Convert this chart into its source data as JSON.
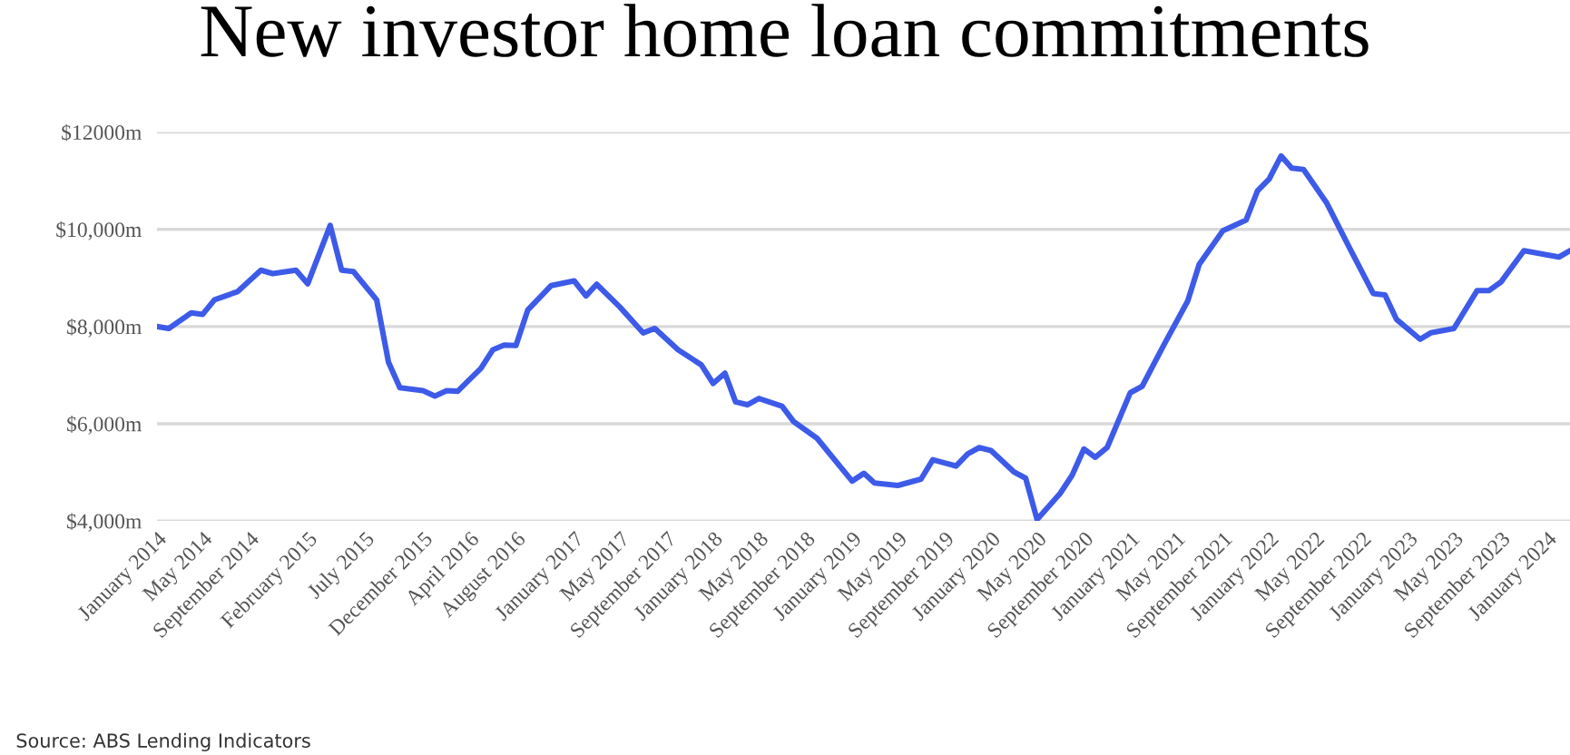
{
  "chart_data": {
    "type": "line",
    "title": "New investor home loan commitments",
    "annotations": [
      "Source: ABS Lending Indicators"
    ],
    "x": [
      "2014-01",
      "2014-02",
      "2014-04",
      "2014-05",
      "2014-06",
      "2014-08",
      "2014-10",
      "2014-11",
      "2015-01",
      "2015-02",
      "2015-04",
      "2015-05",
      "2015-06",
      "2015-08",
      "2015-09",
      "2015-10",
      "2015-12",
      "2016-01",
      "2016-02",
      "2016-03",
      "2016-05",
      "2016-06",
      "2016-07",
      "2016-08",
      "2016-09",
      "2016-11",
      "2017-01",
      "2017-02",
      "2017-03",
      "2017-05",
      "2017-07",
      "2017-08",
      "2017-10",
      "2017-12",
      "2018-01",
      "2018-02",
      "2018-03",
      "2018-04",
      "2018-05",
      "2018-07",
      "2018-08",
      "2018-10",
      "2019-01",
      "2019-02",
      "2019-03",
      "2019-05",
      "2019-07",
      "2019-08",
      "2019-10",
      "2019-11",
      "2019-12",
      "2020-01",
      "2020-03",
      "2020-04",
      "2020-05",
      "2020-07",
      "2020-08",
      "2020-09",
      "2020-10",
      "2020-11",
      "2021-01",
      "2021-02",
      "2021-04",
      "2021-06",
      "2021-07",
      "2021-09",
      "2021-11",
      "2021-12",
      "2022-01",
      "2022-02",
      "2022-03",
      "2022-04",
      "2022-06",
      "2022-08",
      "2022-10",
      "2022-11",
      "2022-12",
      "2023-02",
      "2023-03",
      "2023-05",
      "2023-07",
      "2023-08",
      "2023-09",
      "2023-11",
      "2024-02",
      "2024-03"
    ],
    "series": [
      {
        "color": "#3d5be8",
        "values": [
          8000,
          7960,
          8280,
          8250,
          8550,
          8720,
          9160,
          9090,
          9160,
          8880,
          10080,
          9160,
          9130,
          8550,
          7270,
          6740,
          6680,
          6570,
          6680,
          6670,
          7140,
          7520,
          7620,
          7610,
          8340,
          8840,
          8940,
          8630,
          8870,
          8400,
          7870,
          7960,
          7520,
          7210,
          6830,
          7040,
          6450,
          6390,
          6520,
          6360,
          6040,
          5700,
          4820,
          4980,
          4780,
          4730,
          4860,
          5260,
          5130,
          5380,
          5510,
          5450,
          5010,
          4880,
          4030,
          4570,
          4940,
          5480,
          5310,
          5510,
          6640,
          6770,
          7650,
          8530,
          9280,
          9970,
          10190,
          10790,
          11040,
          11510,
          11260,
          11230,
          10540,
          9600,
          8680,
          8650,
          8150,
          7740,
          7870,
          7960,
          8740,
          8740,
          8910,
          9560,
          9430,
          9560
        ]
      }
    ],
    "xlim": [
      "2014-01",
      "2024-03"
    ],
    "xticks": [
      {
        "value": "2014-01",
        "label": "January 2014"
      },
      {
        "value": "2014-05",
        "label": "May 2014"
      },
      {
        "value": "2014-09",
        "label": "September 2014"
      },
      {
        "value": "2015-02",
        "label": "February 2015"
      },
      {
        "value": "2015-07",
        "label": "July 2015"
      },
      {
        "value": "2015-12",
        "label": "December 2015"
      },
      {
        "value": "2016-04",
        "label": "April 2016"
      },
      {
        "value": "2016-08",
        "label": "August 2016"
      },
      {
        "value": "2017-01",
        "label": "January 2017"
      },
      {
        "value": "2017-05",
        "label": "May 2017"
      },
      {
        "value": "2017-09",
        "label": "September 2017"
      },
      {
        "value": "2018-01",
        "label": "January 2018"
      },
      {
        "value": "2018-05",
        "label": "May 2018"
      },
      {
        "value": "2018-09",
        "label": "September 2018"
      },
      {
        "value": "2019-01",
        "label": "January 2019"
      },
      {
        "value": "2019-05",
        "label": "May 2019"
      },
      {
        "value": "2019-09",
        "label": "September 2019"
      },
      {
        "value": "2020-01",
        "label": "January 2020"
      },
      {
        "value": "2020-05",
        "label": "May 2020"
      },
      {
        "value": "2020-09",
        "label": "September 2020"
      },
      {
        "value": "2021-01",
        "label": "January 2021"
      },
      {
        "value": "2021-05",
        "label": "May 2021"
      },
      {
        "value": "2021-09",
        "label": "September 2021"
      },
      {
        "value": "2022-01",
        "label": "January 2022"
      },
      {
        "value": "2022-05",
        "label": "May 2022"
      },
      {
        "value": "2022-09",
        "label": "September 2022"
      },
      {
        "value": "2023-01",
        "label": "January 2023"
      },
      {
        "value": "2023-05",
        "label": "May 2023"
      },
      {
        "value": "2023-09",
        "label": "September 2023"
      },
      {
        "value": "2024-01",
        "label": "January 2024"
      }
    ],
    "ylim": [
      4000,
      12000
    ],
    "yticks": [
      {
        "value": 4000,
        "label": "$4,000m"
      },
      {
        "value": 6000,
        "label": "$6,000m"
      },
      {
        "value": 8000,
        "label": "$8,000m"
      },
      {
        "value": 10000,
        "label": "$10,000m"
      },
      {
        "value": 12000,
        "label": "$12000m"
      }
    ],
    "grid": "y",
    "marker": "none",
    "line_style": "solid"
  }
}
